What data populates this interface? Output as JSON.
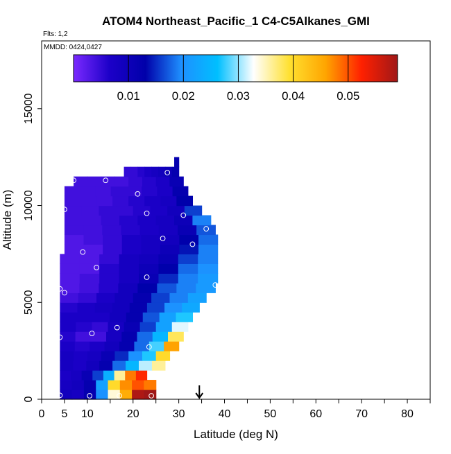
{
  "chart_data": {
    "type": "heatmap",
    "title": "ATOM4 Northeast_Pacific_1 C4-C5Alkanes_GMI",
    "flights_text": "Flts: 1,2",
    "dates_text": "MMDD: 0424,0427",
    "xlabel": "Latitude (deg N)",
    "ylabel": "Altitude (m)",
    "xlim": [
      0,
      85
    ],
    "ylim": [
      0,
      18500
    ],
    "x_tick_labels": [
      "0",
      "5",
      "10",
      "20",
      "30",
      "40",
      "50",
      "60",
      "70",
      "80"
    ],
    "x_tick_values": [
      0,
      5,
      10,
      20,
      30,
      40,
      50,
      60,
      70,
      80
    ],
    "x_minor_ticks": [
      15,
      25,
      35,
      45,
      55,
      65,
      75,
      85
    ],
    "y_tick_labels": [
      "0",
      "5000",
      "10000",
      "15000"
    ],
    "y_tick_values": [
      0,
      5000,
      10000,
      15000
    ],
    "colorbar": {
      "range": [
        0,
        0.059
      ],
      "tick_labels": [
        "0.01",
        "0.02",
        "0.03",
        "0.04",
        "0.05"
      ],
      "tick_values": [
        0.01,
        0.02,
        0.03,
        0.04,
        0.05
      ],
      "stops": [
        "#7b2aff",
        "#1c00c8",
        "#0000aa",
        "#1e90ff",
        "#00bfff",
        "#ffffff",
        "#ffe030",
        "#ffa500",
        "#ff2000",
        "#a01818"
      ]
    },
    "arrow_marker_latitude": 34.5,
    "profile": [
      {
        "alt": 0,
        "x0": 4,
        "x1": 25,
        "values": [
          0.009,
          0.008,
          0.012,
          0.02,
          0.034,
          0.045,
          0.058,
          0.059
        ]
      },
      {
        "alt": 500,
        "x0": 4,
        "x1": 25,
        "values": [
          0.008,
          0.009,
          0.012,
          0.022,
          0.04,
          0.047,
          0.05,
          0.048
        ]
      },
      {
        "alt": 1000,
        "x0": 4,
        "x1": 23,
        "values": [
          0.007,
          0.008,
          0.011,
          0.016,
          0.024,
          0.036,
          0.048,
          0.052
        ]
      },
      {
        "alt": 1500,
        "x0": 4,
        "x1": 27,
        "values": [
          0.008,
          0.007,
          0.009,
          0.012,
          0.018,
          0.025,
          0.031,
          0.036
        ]
      },
      {
        "alt": 2000,
        "x0": 4,
        "x1": 28,
        "values": [
          0.008,
          0.007,
          0.008,
          0.011,
          0.015,
          0.02,
          0.027,
          0.04
        ]
      },
      {
        "alt": 2500,
        "x0": 4,
        "x1": 30,
        "values": [
          0.007,
          0.006,
          0.007,
          0.009,
          0.012,
          0.018,
          0.028,
          0.046
        ]
      },
      {
        "alt": 3000,
        "x0": 4,
        "x1": 31,
        "values": [
          0.006,
          0.004,
          0.004,
          0.008,
          0.012,
          0.018,
          0.025,
          0.038
        ]
      },
      {
        "alt": 3500,
        "x0": 4,
        "x1": 32,
        "values": [
          0.007,
          0.006,
          0.005,
          0.008,
          0.011,
          0.016,
          0.022,
          0.032
        ]
      },
      {
        "alt": 4000,
        "x0": 4,
        "x1": 33,
        "values": [
          0.007,
          0.007,
          0.007,
          0.009,
          0.012,
          0.017,
          0.022,
          0.027
        ]
      },
      {
        "alt": 4500,
        "x0": 4,
        "x1": 34.5,
        "values": [
          0.006,
          0.007,
          0.008,
          0.009,
          0.012,
          0.016,
          0.02,
          0.023
        ]
      },
      {
        "alt": 5000,
        "x0": 4,
        "x1": 36,
        "values": [
          0.004,
          0.005,
          0.007,
          0.009,
          0.012,
          0.016,
          0.019,
          0.022
        ]
      },
      {
        "alt": 5500,
        "x0": 4,
        "x1": 38,
        "values": [
          0.003,
          0.004,
          0.006,
          0.009,
          0.013,
          0.017,
          0.019,
          0.021
        ]
      },
      {
        "alt": 6000,
        "x0": 4,
        "x1": 38.5,
        "values": [
          0.003,
          0.004,
          0.006,
          0.008,
          0.011,
          0.015,
          0.019,
          0.021
        ]
      },
      {
        "alt": 6500,
        "x0": 4,
        "x1": 38.5,
        "values": [
          0.003,
          0.003,
          0.006,
          0.008,
          0.01,
          0.013,
          0.018,
          0.02
        ]
      },
      {
        "alt": 7000,
        "x0": 4,
        "x1": 38.5,
        "values": [
          0.003,
          0.003,
          0.005,
          0.008,
          0.009,
          0.011,
          0.016,
          0.019
        ]
      },
      {
        "alt": 7500,
        "x0": 5,
        "x1": 38.5,
        "values": [
          0.003,
          0.003,
          0.005,
          0.007,
          0.008,
          0.01,
          0.014,
          0.019
        ]
      },
      {
        "alt": 8000,
        "x0": 5,
        "x1": 38.5,
        "values": [
          0.003,
          0.004,
          0.005,
          0.007,
          0.008,
          0.009,
          0.013,
          0.018
        ]
      },
      {
        "alt": 8500,
        "x0": 5,
        "x1": 38,
        "values": [
          0.004,
          0.004,
          0.005,
          0.006,
          0.007,
          0.008,
          0.011,
          0.017
        ]
      },
      {
        "alt": 9000,
        "x0": 5,
        "x1": 37,
        "values": [
          0.004,
          0.004,
          0.005,
          0.006,
          0.007,
          0.008,
          0.01,
          0.019
        ]
      },
      {
        "alt": 9500,
        "x0": 5,
        "x1": 35,
        "values": [
          0.004,
          0.004,
          0.005,
          0.005,
          0.006,
          0.007,
          0.009,
          0.016
        ]
      },
      {
        "alt": 10000,
        "x0": 5,
        "x1": 33,
        "values": [
          0.004,
          0.004,
          0.004,
          0.005,
          0.006,
          0.007,
          0.008,
          0.013
        ]
      },
      {
        "alt": 10500,
        "x0": 5,
        "x1": 32,
        "values": [
          0.004,
          0.004,
          0.004,
          0.005,
          0.005,
          0.006,
          0.007,
          0.012
        ]
      },
      {
        "alt": 11000,
        "x0": 7,
        "x1": 31,
        "values": [
          0.004,
          0.004,
          0.004,
          0.004,
          0.005,
          0.006,
          0.007,
          0.011
        ]
      },
      {
        "alt": 11500,
        "x0": 18,
        "x1": 30,
        "values": [
          0.005,
          0.005,
          0.006,
          0.007,
          0.008,
          0.009,
          0.01,
          0.012
        ]
      },
      {
        "alt": 12000,
        "x0": 29,
        "x1": 30,
        "values": [
          0.012
        ]
      }
    ],
    "points": [
      {
        "lat": 4,
        "alt": 200
      },
      {
        "lat": 10.5,
        "alt": 180
      },
      {
        "lat": 17,
        "alt": 180
      },
      {
        "lat": 24,
        "alt": 180
      },
      {
        "lat": 4,
        "alt": 3200
      },
      {
        "lat": 11,
        "alt": 3400
      },
      {
        "lat": 16.5,
        "alt": 3700
      },
      {
        "lat": 23.5,
        "alt": 2700
      },
      {
        "lat": 4,
        "alt": 5700
      },
      {
        "lat": 5,
        "alt": 5500
      },
      {
        "lat": 23,
        "alt": 6300
      },
      {
        "lat": 12,
        "alt": 6800
      },
      {
        "lat": 9,
        "alt": 7600
      },
      {
        "lat": 26.5,
        "alt": 8300
      },
      {
        "lat": 33,
        "alt": 8000
      },
      {
        "lat": 38,
        "alt": 5900
      },
      {
        "lat": 36,
        "alt": 8800
      },
      {
        "lat": 5,
        "alt": 9800
      },
      {
        "lat": 23,
        "alt": 9600
      },
      {
        "lat": 31,
        "alt": 9500
      },
      {
        "lat": 21,
        "alt": 10600
      },
      {
        "lat": 7,
        "alt": 11300
      },
      {
        "lat": 14,
        "alt": 11300
      },
      {
        "lat": 27.5,
        "alt": 11700
      }
    ]
  }
}
